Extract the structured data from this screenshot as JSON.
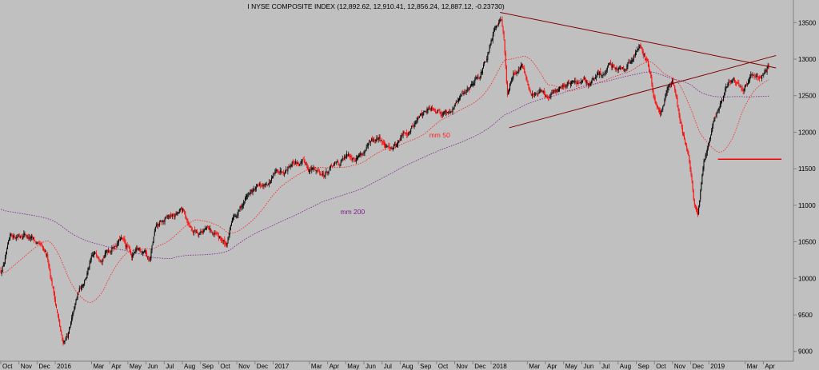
{
  "chart_data": {
    "type": "candlestick",
    "title": "I NYSE COMPOSITE INDEX (12,892.62, 12,910.41, 12,856.24, 12,887.12, -0.23730)",
    "ylim": [
      8800,
      13700
    ],
    "y_ticks": [
      9000,
      9500,
      10000,
      10500,
      11000,
      11500,
      12000,
      12500,
      13000,
      13500
    ],
    "x_labels": [
      "Oct",
      "Nov",
      "Dec",
      "2016",
      "Mar",
      "Apr",
      "May",
      "Jun",
      "Jul",
      "Aug",
      "Sep",
      "Oct",
      "Nov",
      "Dec",
      "2017",
      "Mar",
      "Apr",
      "May",
      "Jun",
      "Jul",
      "Aug",
      "Sep",
      "Oct",
      "Nov",
      "Dec",
      "2018",
      "Mar",
      "Apr",
      "May",
      "Jun",
      "Jul",
      "Aug",
      "Sep",
      "Oct",
      "Nov",
      "Dec",
      "2019",
      "Mar",
      "Apr"
    ],
    "x_labels_month_index": [
      0,
      1,
      2,
      3,
      5,
      6,
      7,
      8,
      9,
      10,
      11,
      12,
      13,
      14,
      15,
      17,
      18,
      19,
      20,
      21,
      22,
      23,
      24,
      25,
      26,
      27,
      29,
      30,
      31,
      32,
      33,
      34,
      35,
      36,
      37,
      38,
      39,
      41,
      42
    ],
    "price_path": [
      [
        0.0,
        10100
      ],
      [
        0.5,
        10500
      ],
      [
        1.3,
        10650
      ],
      [
        2.0,
        10450
      ],
      [
        2.6,
        10200
      ],
      [
        3.0,
        9700
      ],
      [
        3.4,
        9100
      ],
      [
        3.8,
        9300
      ],
      [
        4.3,
        9800
      ],
      [
        5.0,
        10250
      ],
      [
        5.8,
        10400
      ],
      [
        6.6,
        10550
      ],
      [
        7.2,
        10300
      ],
      [
        7.9,
        10400
      ],
      [
        8.2,
        10250
      ],
      [
        8.5,
        10650
      ],
      [
        9.2,
        10800
      ],
      [
        10.0,
        10900
      ],
      [
        10.6,
        10650
      ],
      [
        11.3,
        10700
      ],
      [
        11.9,
        10550
      ],
      [
        12.4,
        10450
      ],
      [
        12.8,
        10800
      ],
      [
        13.6,
        11150
      ],
      [
        14.5,
        11250
      ],
      [
        15.3,
        11450
      ],
      [
        16.1,
        11650
      ],
      [
        17.0,
        11500
      ],
      [
        17.8,
        11450
      ],
      [
        18.6,
        11550
      ],
      [
        19.2,
        11650
      ],
      [
        20.0,
        11750
      ],
      [
        20.9,
        11900
      ],
      [
        21.3,
        11750
      ],
      [
        22.1,
        11950
      ],
      [
        23.0,
        12200
      ],
      [
        23.8,
        12380
      ],
      [
        24.6,
        12300
      ],
      [
        25.3,
        12450
      ],
      [
        26.1,
        12750
      ],
      [
        26.8,
        13000
      ],
      [
        27.35,
        13500
      ],
      [
        27.55,
        13600
      ],
      [
        27.7,
        13400
      ],
      [
        27.9,
        12500
      ],
      [
        28.2,
        12800
      ],
      [
        28.7,
        12950
      ],
      [
        29.2,
        12450
      ],
      [
        29.7,
        12600
      ],
      [
        30.2,
        12450
      ],
      [
        30.7,
        12600
      ],
      [
        31.3,
        12700
      ],
      [
        31.8,
        12650
      ],
      [
        32.4,
        12650
      ],
      [
        32.9,
        12750
      ],
      [
        33.4,
        12850
      ],
      [
        33.9,
        12900
      ],
      [
        34.4,
        12950
      ],
      [
        34.8,
        13000
      ],
      [
        35.2,
        13230
      ],
      [
        35.6,
        13000
      ],
      [
        36.0,
        12500
      ],
      [
        36.3,
        12200
      ],
      [
        36.7,
        12550
      ],
      [
        37.0,
        12700
      ],
      [
        37.3,
        12400
      ],
      [
        37.6,
        12000
      ],
      [
        37.9,
        11700
      ],
      [
        38.2,
        11000
      ],
      [
        38.4,
        10780
      ],
      [
        38.7,
        11600
      ],
      [
        39.1,
        12000
      ],
      [
        39.5,
        12300
      ],
      [
        39.9,
        12550
      ],
      [
        40.4,
        12700
      ],
      [
        40.9,
        12650
      ],
      [
        41.4,
        12800
      ],
      [
        41.8,
        12750
      ],
      [
        42.3,
        12887
      ]
    ],
    "candle_count": 900,
    "series": [
      {
        "name": "mm 50",
        "color": "#ff1e1e",
        "style": "dotted"
      },
      {
        "name": "mm 200",
        "color": "#7a1f8c",
        "style": "dotted"
      }
    ],
    "annotations": [
      {
        "text": "mm 50",
        "x_month": 23.6,
        "y": 11930,
        "color": "#ff2020"
      },
      {
        "text": "mm 200",
        "x_month": 18.7,
        "y": 10880,
        "color": "#7a1f8c"
      }
    ],
    "trendlines": [
      {
        "name": "upper-trendline",
        "from": [
          27.5,
          13640
        ],
        "to": [
          42.7,
          12880
        ],
        "color": "#800000"
      },
      {
        "name": "lower-trendline",
        "from": [
          28.0,
          12060
        ],
        "to": [
          42.7,
          13050
        ],
        "color": "#800000"
      },
      {
        "name": "support-line",
        "from": [
          39.5,
          11630
        ],
        "to": [
          43.0,
          11630
        ],
        "color": "#ff0000"
      }
    ],
    "grid": false,
    "colors": {
      "background": "#c0c0c0",
      "up": "#000000",
      "down": "#ff0000",
      "axis": "#808080"
    }
  }
}
